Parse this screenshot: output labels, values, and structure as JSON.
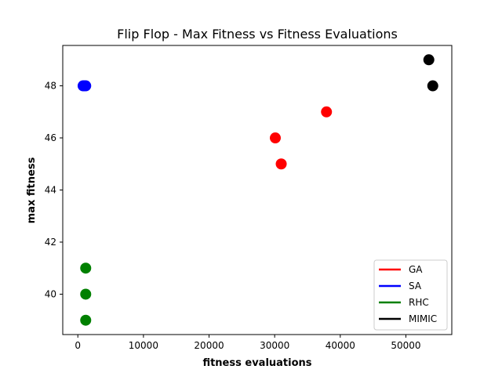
{
  "chart_data": {
    "type": "scatter",
    "title": "Flip Flop - Max Fitness vs Fitness Evaluations",
    "xlabel": "fitness evaluations",
    "ylabel": "max fitness",
    "xlim": [
      -2300,
      57000
    ],
    "ylim": [
      38.45,
      49.55
    ],
    "xticks": [
      0,
      10000,
      20000,
      30000,
      40000,
      50000
    ],
    "yticks": [
      40,
      42,
      44,
      46,
      48
    ],
    "grid": false,
    "legend_position": "lower-right",
    "series": [
      {
        "name": "GA",
        "color": "#ff0000",
        "points": [
          {
            "x": 30100,
            "y": 46
          },
          {
            "x": 31000,
            "y": 45
          },
          {
            "x": 37900,
            "y": 47
          }
        ]
      },
      {
        "name": "SA",
        "color": "#0000ff",
        "points": [
          {
            "x": 800,
            "y": 48
          },
          {
            "x": 1000,
            "y": 48
          },
          {
            "x": 1200,
            "y": 48
          }
        ]
      },
      {
        "name": "RHC",
        "color": "#008000",
        "points": [
          {
            "x": 1200,
            "y": 41
          },
          {
            "x": 1200,
            "y": 40
          },
          {
            "x": 1200,
            "y": 39
          }
        ]
      },
      {
        "name": "MIMIC",
        "color": "#000000",
        "points": [
          {
            "x": 53500,
            "y": 49
          },
          {
            "x": 54100,
            "y": 48
          }
        ]
      }
    ]
  }
}
